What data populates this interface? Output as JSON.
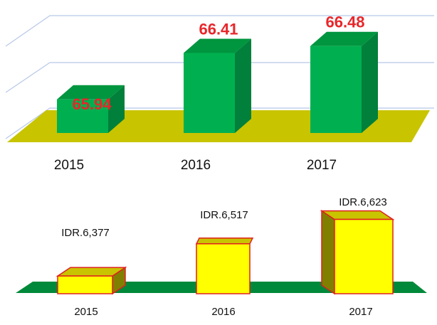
{
  "chart_data": [
    {
      "type": "bar",
      "categories": [
        "2015",
        "2016",
        "2017"
      ],
      "values": [
        65.94,
        66.41,
        66.48
      ],
      "value_labels": [
        "65.94",
        "66.41",
        "66.48"
      ],
      "colors": {
        "bar": "#00b050",
        "bar_side": "#00803a",
        "bar_top": "#00953f",
        "floor": "#c8c400",
        "label": "#e8262a",
        "grid": "#b8c8e8"
      }
    },
    {
      "type": "bar",
      "categories": [
        "2015",
        "2016",
        "2017"
      ],
      "values": [
        6377,
        6517,
        6623
      ],
      "value_labels": [
        "IDR.6,377",
        "IDR.6,517",
        "IDR.6,623"
      ],
      "colors": {
        "bar": "#ffff00",
        "bar_side": "#808000",
        "bar_top": "#c8c400",
        "outline": "#e02020",
        "floor": "#00893a"
      }
    }
  ]
}
